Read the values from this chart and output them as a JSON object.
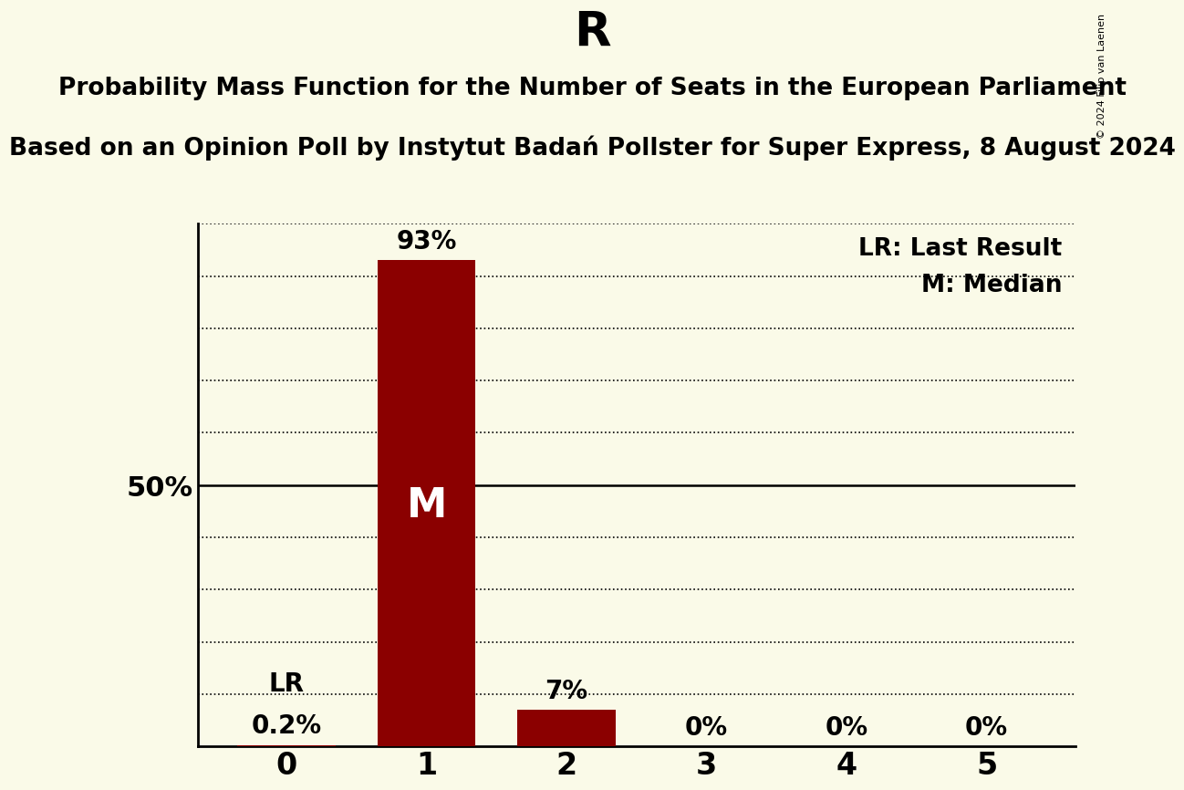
{
  "title": "R",
  "subtitle1": "Probability Mass Function for the Number of Seats in the European Parliament",
  "subtitle2": "Based on an Opinion Poll by Instytut Badań Pollster for Super Express, 8 August 2024",
  "copyright": "© 2024 Filip van Laenen",
  "categories": [
    0,
    1,
    2,
    3,
    4,
    5
  ],
  "values": [
    0.2,
    93,
    7,
    0,
    0,
    0
  ],
  "bar_color": "#8B0000",
  "background_color": "#FAFAE8",
  "bar_labels": [
    "0.2%",
    "93%",
    "7%",
    "0%",
    "0%",
    "0%"
  ],
  "lr_seat": 0,
  "median_seat": 1,
  "ytick_label": "50%",
  "ytick_value": 50,
  "ylim": [
    0,
    100
  ],
  "legend_lr": "LR: Last Result",
  "legend_m": "M: Median",
  "lr_annotation": "LR",
  "median_annotation": "M",
  "title_fontsize": 38,
  "subtitle_fontsize": 19,
  "bar_label_fontsize": 20,
  "lr_label_fontsize": 20,
  "annotation_fontsize_m": 32,
  "ytick_fontsize": 22,
  "xtick_fontsize": 24,
  "legend_fontsize": 19
}
